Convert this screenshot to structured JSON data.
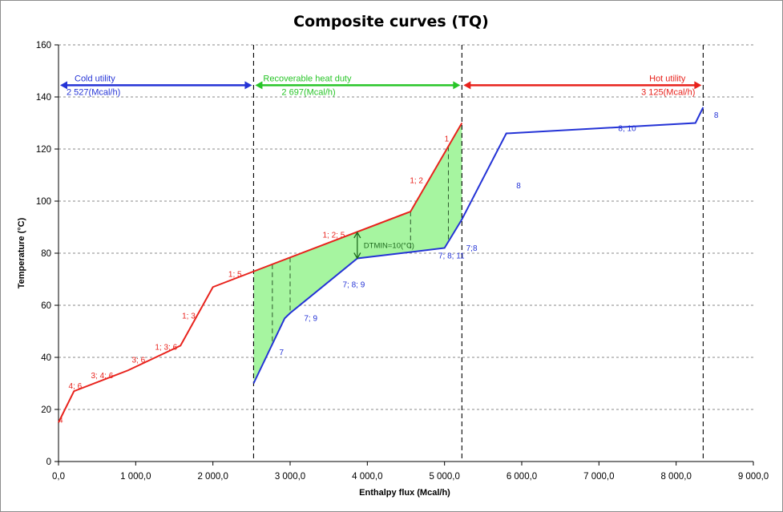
{
  "chart_data": {
    "type": "line",
    "title": "Composite curves (TQ)",
    "xlabel": "Enthalpy flux (Mcal/h)",
    "ylabel": "Temperature (°C)",
    "xlim": [
      0,
      9000
    ],
    "ylim": [
      0,
      160
    ],
    "xticks": [
      0,
      1000,
      2000,
      3000,
      4000,
      5000,
      6000,
      7000,
      8000,
      9000
    ],
    "xtick_labels": [
      "0,0",
      "1 000,0",
      "2 000,0",
      "3 000,0",
      "4 000,0",
      "5 000,0",
      "6 000,0",
      "7 000,0",
      "8 000,0",
      "9 000,0"
    ],
    "yticks": [
      0,
      20,
      40,
      60,
      80,
      100,
      120,
      140,
      160
    ],
    "ytick_labels": [
      "0",
      "20",
      "40",
      "60",
      "80",
      "100",
      "120",
      "140",
      "160"
    ],
    "grid": "horizontal dashed",
    "colors": {
      "hot": "#e8221c",
      "cold": "#2433d6",
      "recovered": "#a6f5a0",
      "utility_recovered": "#27c527",
      "dtmin": "#1f6b1f"
    },
    "series": [
      {
        "key": "hot",
        "x": [
          0,
          200,
          900,
          1580,
          2000,
          2527,
          4560,
          5225
        ],
        "y": [
          15,
          27,
          35,
          44.5,
          67,
          73,
          96,
          130
        ]
      },
      {
        "key": "cold",
        "x": [
          2527,
          2930,
          3000,
          3870,
          5000,
          5225,
          5800,
          8250,
          8350
        ],
        "y": [
          30,
          55,
          57,
          78,
          82,
          93,
          126,
          130,
          136
        ]
      }
    ],
    "point_labels": {
      "hot": [
        {
          "text": "4",
          "x": 0,
          "y": 15
        },
        {
          "text": "4; 6",
          "x": 130,
          "y": 28
        },
        {
          "text": "3; 4; 6",
          "x": 420,
          "y": 32
        },
        {
          "text": "3; 6",
          "x": 950,
          "y": 38
        },
        {
          "text": "1; 3; 6",
          "x": 1250,
          "y": 43
        },
        {
          "text": "1; 3",
          "x": 1600,
          "y": 55
        },
        {
          "text": "1; 5",
          "x": 2200,
          "y": 71
        },
        {
          "text": "1; 2; 5",
          "x": 3420,
          "y": 86
        },
        {
          "text": "1; 2",
          "x": 4550,
          "y": 107
        },
        {
          "text": "1",
          "x": 5000,
          "y": 123
        }
      ],
      "cold": [
        {
          "text": "7",
          "x": 2860,
          "y": 41
        },
        {
          "text": "7; 9",
          "x": 3180,
          "y": 54
        },
        {
          "text": "7; 8; 9",
          "x": 3680,
          "y": 67
        },
        {
          "text": "7; 8; 11",
          "x": 4920,
          "y": 78
        },
        {
          "text": "7;8",
          "x": 5280,
          "y": 81
        },
        {
          "text": "8",
          "x": 5930,
          "y": 105
        },
        {
          "text": "8; 10",
          "x": 7250,
          "y": 127
        },
        {
          "text": "8",
          "x": 8490,
          "y": 132
        }
      ]
    },
    "vertical_markers": [
      2527,
      5225,
      8350
    ],
    "recovery_hatches": [
      2770,
      3000,
      4560,
      5050
    ],
    "dtmin": {
      "x": 3870,
      "y_low": 78,
      "y_high": 88,
      "label": "DTMIN=10(°C)"
    },
    "annotations": [
      {
        "label": "Cold utility",
        "value": "2 527(Mcal/h)",
        "x_from": 0,
        "x_to": 2527,
        "color": "#2433d6"
      },
      {
        "label": "Recoverable heat duty",
        "value": "2 697(Mcal/h)",
        "x_from": 2527,
        "x_to": 5225,
        "color": "#27c527"
      },
      {
        "label": "Hot utility",
        "value": "3 125(Mcal/h)",
        "x_from": 5225,
        "x_to": 8350,
        "color": "#e8221c"
      }
    ]
  }
}
